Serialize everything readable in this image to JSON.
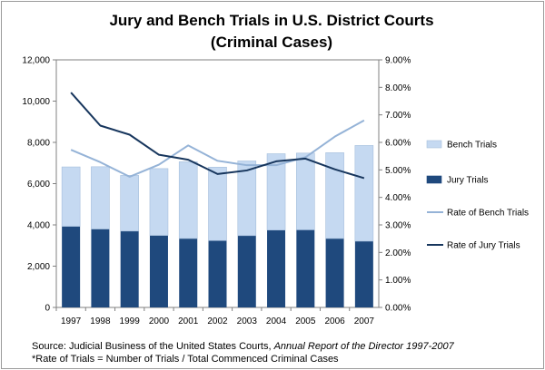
{
  "chart_data": {
    "type": "bar",
    "title_line1": "Jury and Bench Trials in U.S. District Courts",
    "title_line2": "(Criminal Cases)",
    "categories": [
      "1997",
      "1998",
      "1999",
      "2000",
      "2001",
      "2002",
      "2003",
      "2004",
      "2005",
      "2006",
      "2007"
    ],
    "stacked": true,
    "y_left": {
      "lim": [
        0,
        12000
      ],
      "ticks": [
        "0",
        "2,000",
        "4,000",
        "6,000",
        "8,000",
        "10,000",
        "12,000"
      ]
    },
    "y_right": {
      "lim": [
        0,
        9
      ],
      "unit": "%",
      "ticks": [
        "0.00%",
        "1.00%",
        "2.00%",
        "3.00%",
        "4.00%",
        "5.00%",
        "6.00%",
        "7.00%",
        "8.00%",
        "9.00%"
      ]
    },
    "series": [
      {
        "name": "Bench Trials",
        "kind": "bar",
        "color": "#c5d9f1",
        "values": [
          2880,
          3020,
          2700,
          3240,
          3720,
          3560,
          3620,
          3700,
          3720,
          4160,
          4640
        ]
      },
      {
        "name": "Jury Trials",
        "kind": "bar",
        "color": "#1f497d",
        "values": [
          3930,
          3800,
          3700,
          3490,
          3340,
          3240,
          3480,
          3750,
          3760,
          3340,
          3210
        ]
      },
      {
        "name": "Rate of Bench Trials",
        "kind": "line",
        "axis": "right",
        "color": "#95b3d7",
        "values": [
          5.73,
          5.28,
          4.75,
          5.19,
          5.89,
          5.33,
          5.17,
          5.17,
          5.46,
          6.21,
          6.8
        ]
      },
      {
        "name": "Rate of Jury Trials",
        "kind": "line",
        "axis": "right",
        "color": "#17365d",
        "values": [
          7.81,
          6.61,
          6.28,
          5.55,
          5.37,
          4.85,
          4.98,
          5.31,
          5.41,
          5.02,
          4.7
        ]
      }
    ],
    "legend_position": "right",
    "grid": false
  },
  "notes": {
    "source_prefix": "Source: Judicial Business of the United States Courts, ",
    "source_italic": "Annual Report of the Director 1997-2007",
    "footnote": "*Rate of Trials = Number of Trials / Total Commenced Criminal Cases"
  }
}
